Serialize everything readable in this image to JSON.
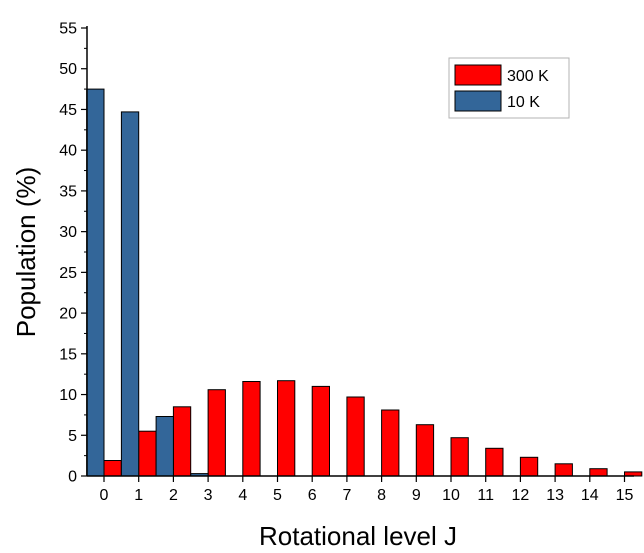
{
  "chart_data": {
    "type": "bar",
    "xlabel": "Rotational level J",
    "ylabel": "Population (%)",
    "ylim": [
      0,
      55
    ],
    "y_ticks": [
      0,
      5,
      10,
      15,
      20,
      25,
      30,
      35,
      40,
      45,
      50,
      55
    ],
    "categories": [
      "0",
      "1",
      "2",
      "3",
      "4",
      "5",
      "6",
      "7",
      "8",
      "9",
      "10",
      "11",
      "12",
      "13",
      "14",
      "15"
    ],
    "series": [
      {
        "name": "300 K",
        "color": "#ff0000",
        "values": [
          1.9,
          5.5,
          8.5,
          10.6,
          11.6,
          11.7,
          11.0,
          9.7,
          8.1,
          6.3,
          4.7,
          3.4,
          2.3,
          1.5,
          0.9,
          0.5
        ]
      },
      {
        "name": "10 K",
        "color": "#336699",
        "values": [
          47.5,
          44.7,
          7.3,
          0.3,
          0,
          0,
          0,
          0,
          0,
          0,
          0,
          0,
          0,
          0,
          0,
          0
        ]
      }
    ],
    "legend_position": "top-right",
    "grid": false
  }
}
